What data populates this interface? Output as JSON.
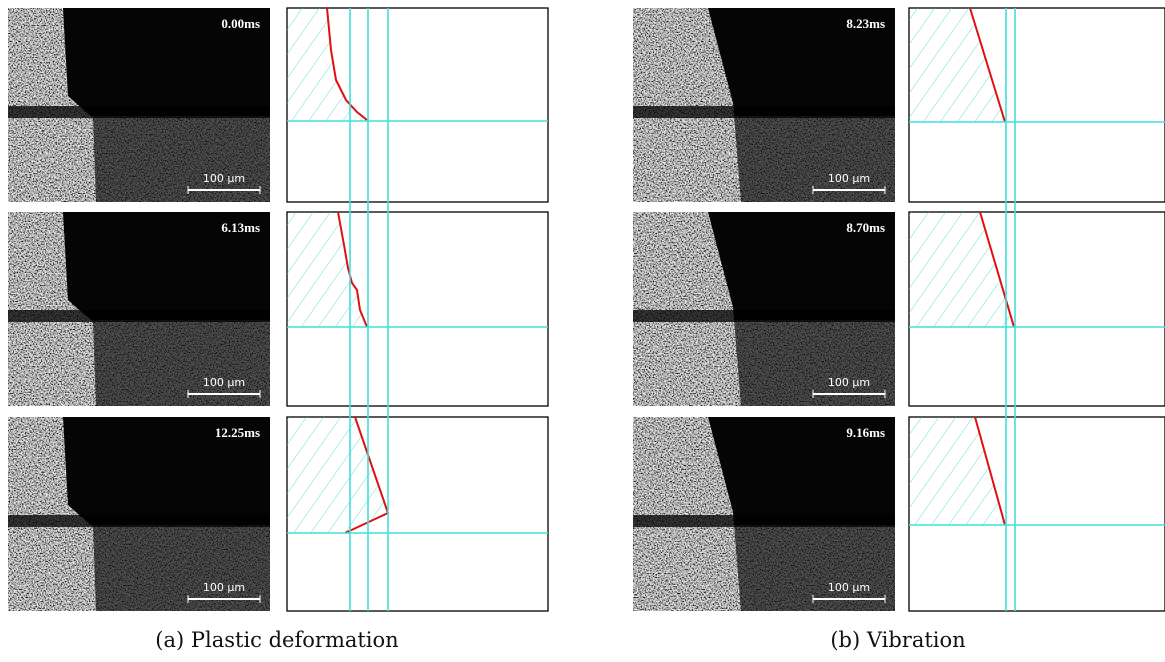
{
  "figure": {
    "panels": [
      {
        "caption": "(a) Plastic deformation",
        "frames": [
          {
            "time": "0.00ms",
            "scale": "100 µm"
          },
          {
            "time": "6.13ms",
            "scale": "100 µm"
          },
          {
            "time": "12.25ms",
            "scale": "100 µm"
          }
        ]
      },
      {
        "caption": "(b) Vibration",
        "frames": [
          {
            "time": "8.23ms",
            "scale": "100 µm"
          },
          {
            "time": "8.70ms",
            "scale": "100 µm"
          },
          {
            "time": "9.16ms",
            "scale": "100 µm"
          }
        ]
      }
    ]
  }
}
